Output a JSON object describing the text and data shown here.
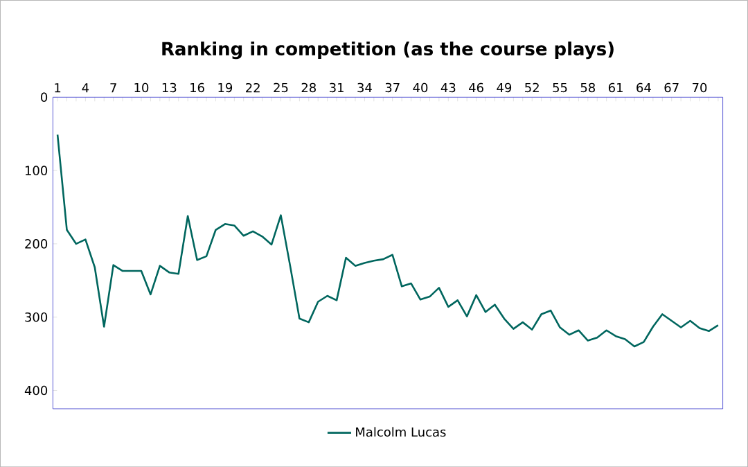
{
  "chart_data": {
    "type": "line",
    "title": "Ranking in competition (as the course plays)",
    "categories": [
      "1",
      null,
      null,
      "4",
      null,
      null,
      "7",
      null,
      null,
      "10",
      null,
      null,
      "13",
      null,
      null,
      "16",
      null,
      null,
      "19",
      null,
      null,
      "22",
      null,
      null,
      "25",
      null,
      null,
      "28",
      null,
      null,
      "31",
      null,
      null,
      "34",
      null,
      null,
      "37",
      null,
      null,
      "40",
      null,
      null,
      "43",
      null,
      null,
      "46",
      null,
      null,
      "49",
      null,
      null,
      "52",
      null,
      null,
      "55",
      null,
      null,
      "58",
      null,
      null,
      "61",
      null,
      null,
      "64",
      null,
      null,
      "67",
      null,
      null,
      "70",
      null,
      null
    ],
    "series": [
      {
        "name": "Malcolm Lucas",
        "color": "#00665e",
        "values": [
          51,
          181,
          200,
          194,
          232,
          313,
          229,
          237,
          237,
          237,
          269,
          230,
          239,
          241,
          162,
          222,
          217,
          181,
          173,
          175,
          189,
          183,
          190,
          201,
          161,
          230,
          302,
          307,
          279,
          271,
          277,
          219,
          230,
          226,
          223,
          221,
          215,
          258,
          254,
          276,
          272,
          260,
          286,
          277,
          299,
          270,
          293,
          283,
          302,
          316,
          307,
          317,
          296,
          291,
          314,
          324,
          318,
          332,
          328,
          318,
          326,
          330,
          340,
          334,
          313,
          296,
          305,
          314,
          305,
          315,
          319,
          311
        ]
      }
    ],
    "ylim": [
      425,
      0
    ],
    "yticks": [
      0,
      100,
      200,
      300,
      400
    ],
    "grid": false,
    "legend": "bottom",
    "marker": "none",
    "line_style": "solid"
  }
}
